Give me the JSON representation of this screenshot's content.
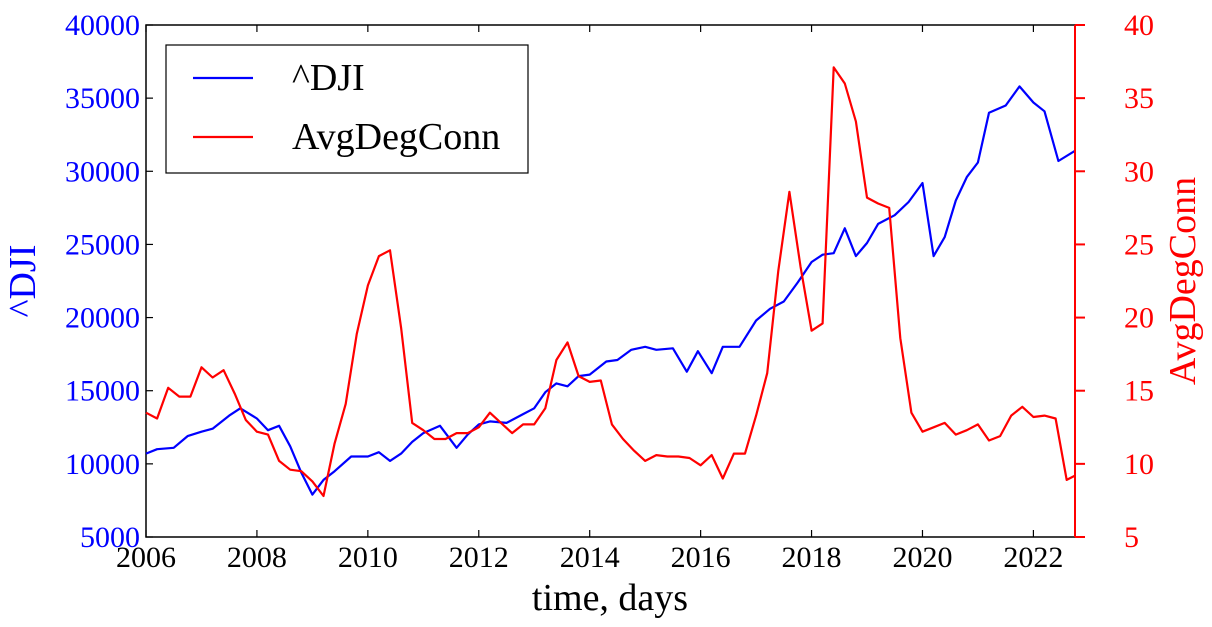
{
  "chart_data": {
    "type": "line",
    "title": "",
    "xlabel": "time, days",
    "xlim": [
      2006.0,
      2022.75
    ],
    "x_ticks": [
      "2006",
      "2008",
      "2010",
      "2012",
      "2014",
      "2016",
      "2018",
      "2020",
      "2022"
    ],
    "grid": false,
    "legend": {
      "placement": "top-left",
      "entries": [
        "^DJI",
        "AvgDegConn"
      ]
    },
    "axes": [
      {
        "side": "left",
        "label": "^DJI",
        "color": "#0000ff",
        "ylim": [
          5000,
          40000
        ],
        "ticks": [
          "5000",
          "10000",
          "15000",
          "20000",
          "25000",
          "30000",
          "35000",
          "40000"
        ]
      },
      {
        "side": "right",
        "label": "AvgDegConn",
        "color": "#ff0000",
        "ylim": [
          5,
          40
        ],
        "ticks": [
          "5",
          "10",
          "15",
          "20",
          "25",
          "30",
          "35",
          "40"
        ]
      }
    ],
    "series": [
      {
        "name": "^DJI",
        "axis": "left",
        "color": "#0000ff",
        "x": [
          2006.0,
          2006.2,
          2006.5,
          2006.75,
          2007.0,
          2007.2,
          2007.5,
          2007.7,
          2008.0,
          2008.2,
          2008.4,
          2008.6,
          2008.8,
          2009.0,
          2009.2,
          2009.4,
          2009.7,
          2010.0,
          2010.2,
          2010.4,
          2010.6,
          2010.8,
          2011.0,
          2011.3,
          2011.6,
          2011.8,
          2012.0,
          2012.2,
          2012.5,
          2012.8,
          2013.0,
          2013.2,
          2013.4,
          2013.6,
          2013.8,
          2014.0,
          2014.3,
          2014.5,
          2014.75,
          2015.0,
          2015.2,
          2015.5,
          2015.75,
          2015.95,
          2016.2,
          2016.4,
          2016.7,
          2017.0,
          2017.25,
          2017.5,
          2017.75,
          2018.0,
          2018.2,
          2018.4,
          2018.6,
          2018.8,
          2019.0,
          2019.2,
          2019.5,
          2019.75,
          2020.0,
          2020.2,
          2020.4,
          2020.6,
          2020.8,
          2021.0,
          2021.2,
          2021.5,
          2021.75,
          2022.0,
          2022.2,
          2022.45,
          2022.75
        ],
        "values": [
          10700,
          11000,
          11100,
          11900,
          12200,
          12400,
          13300,
          13800,
          13100,
          12300,
          12600,
          11200,
          9400,
          7900,
          8900,
          9500,
          10500,
          10500,
          10800,
          10200,
          10700,
          11500,
          12100,
          12600,
          11100,
          12000,
          12700,
          12900,
          12800,
          13400,
          13800,
          14900,
          15500,
          15300,
          16000,
          16100,
          17000,
          17100,
          17800,
          18000,
          17800,
          17900,
          16300,
          17700,
          16200,
          18000,
          18000,
          19800,
          20600,
          21100,
          22400,
          23800,
          24300,
          24400,
          26100,
          24200,
          25100,
          26400,
          27000,
          27900,
          29200,
          24200,
          25500,
          28000,
          29600,
          30600,
          34000,
          34500,
          35800,
          34700,
          34100,
          30700,
          31400
        ]
      },
      {
        "name": "AvgDegConn",
        "axis": "right",
        "color": "#ff0000",
        "x": [
          2006.0,
          2006.2,
          2006.4,
          2006.6,
          2006.8,
          2007.0,
          2007.2,
          2007.4,
          2007.6,
          2007.8,
          2008.0,
          2008.2,
          2008.4,
          2008.6,
          2008.8,
          2009.0,
          2009.2,
          2009.4,
          2009.6,
          2009.8,
          2010.0,
          2010.2,
          2010.4,
          2010.6,
          2010.8,
          2011.0,
          2011.2,
          2011.4,
          2011.6,
          2011.8,
          2012.0,
          2012.2,
          2012.4,
          2012.6,
          2012.8,
          2013.0,
          2013.2,
          2013.4,
          2013.6,
          2013.8,
          2014.0,
          2014.2,
          2014.4,
          2014.6,
          2014.8,
          2015.0,
          2015.2,
          2015.4,
          2015.6,
          2015.8,
          2016.0,
          2016.2,
          2016.4,
          2016.6,
          2016.8,
          2017.0,
          2017.2,
          2017.4,
          2017.6,
          2017.8,
          2018.0,
          2018.2,
          2018.4,
          2018.6,
          2018.8,
          2019.0,
          2019.2,
          2019.4,
          2019.6,
          2019.8,
          2020.0,
          2020.2,
          2020.4,
          2020.6,
          2020.8,
          2021.0,
          2021.2,
          2021.4,
          2021.6,
          2021.8,
          2022.0,
          2022.2,
          2022.4,
          2022.6,
          2022.75
        ],
        "values": [
          13.5,
          13.1,
          15.2,
          14.6,
          14.6,
          16.6,
          15.9,
          16.4,
          14.8,
          13.0,
          12.2,
          12.0,
          10.2,
          9.6,
          9.5,
          8.8,
          7.8,
          11.4,
          14.1,
          18.9,
          22.2,
          24.2,
          24.6,
          19.3,
          12.8,
          12.3,
          11.7,
          11.7,
          12.1,
          12.1,
          12.5,
          13.5,
          12.8,
          12.1,
          12.7,
          12.7,
          13.8,
          17.1,
          18.3,
          16.0,
          15.6,
          15.7,
          12.7,
          11.7,
          10.9,
          10.2,
          10.6,
          10.5,
          10.5,
          10.4,
          9.9,
          10.6,
          9.0,
          10.7,
          10.7,
          13.3,
          16.2,
          23.2,
          28.6,
          23.5,
          19.1,
          19.6,
          37.1,
          36.0,
          33.4,
          28.2,
          27.8,
          27.5,
          18.6,
          13.5,
          12.2,
          12.5,
          12.8,
          12.0,
          12.3,
          12.7,
          11.6,
          11.9,
          13.3,
          13.9,
          13.2,
          13.3,
          13.1,
          8.9,
          9.2
        ]
      }
    ]
  }
}
